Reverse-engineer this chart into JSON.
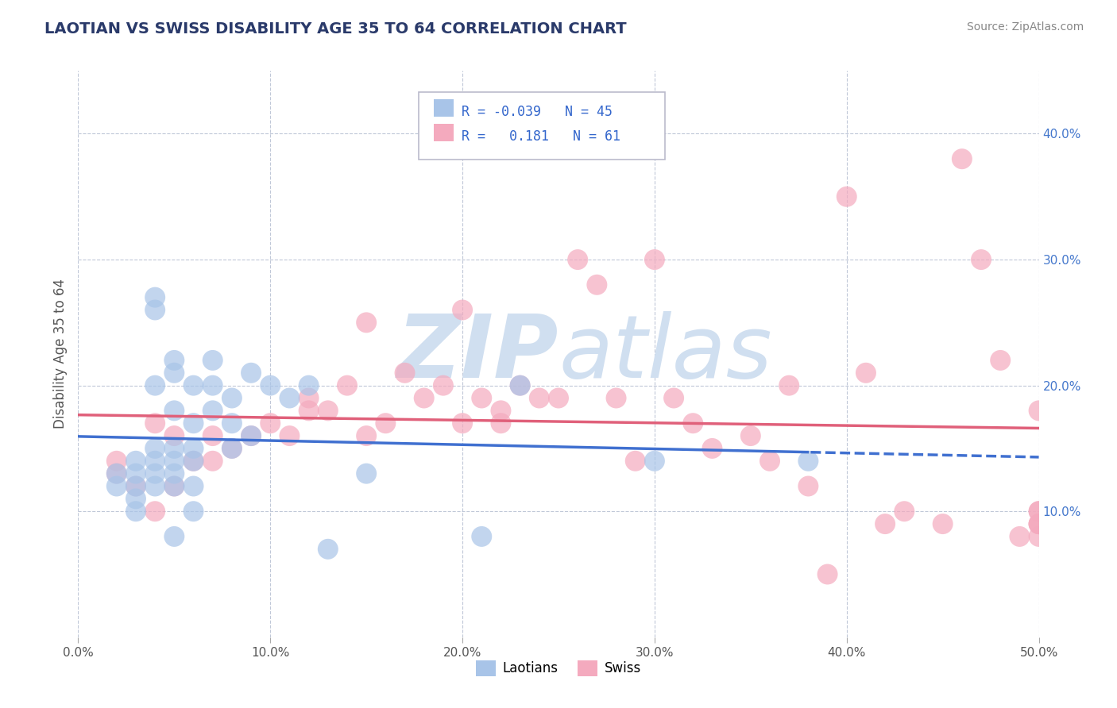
{
  "title": "LAOTIAN VS SWISS DISABILITY AGE 35 TO 64 CORRELATION CHART",
  "source_text": "Source: ZipAtlas.com",
  "ylabel": "Disability Age 35 to 64",
  "xlim": [
    0.0,
    0.5
  ],
  "ylim": [
    0.0,
    0.45
  ],
  "xticks": [
    0.0,
    0.1,
    0.2,
    0.3,
    0.4,
    0.5
  ],
  "xtick_labels": [
    "0.0%",
    "10.0%",
    "20.0%",
    "30.0%",
    "40.0%",
    "50.0%"
  ],
  "yticks": [
    0.1,
    0.2,
    0.3,
    0.4
  ],
  "ytick_labels": [
    "10.0%",
    "20.0%",
    "30.0%",
    "40.0%"
  ],
  "legend_r_laotian": "-0.039",
  "legend_n_laotian": "45",
  "legend_r_swiss": "0.181",
  "legend_n_swiss": "61",
  "laotian_color": "#a8c4e8",
  "swiss_color": "#f4aabe",
  "laotian_line_color": "#4070d0",
  "swiss_line_color": "#e0607a",
  "background_color": "#ffffff",
  "watermark_color": "#d0dff0",
  "laotian_x": [
    0.02,
    0.02,
    0.03,
    0.03,
    0.03,
    0.03,
    0.03,
    0.04,
    0.04,
    0.04,
    0.04,
    0.04,
    0.04,
    0.04,
    0.05,
    0.05,
    0.05,
    0.05,
    0.05,
    0.05,
    0.05,
    0.05,
    0.06,
    0.06,
    0.06,
    0.06,
    0.06,
    0.06,
    0.07,
    0.07,
    0.07,
    0.08,
    0.08,
    0.08,
    0.09,
    0.09,
    0.1,
    0.11,
    0.12,
    0.13,
    0.15,
    0.21,
    0.23,
    0.3,
    0.38
  ],
  "laotian_y": [
    0.13,
    0.12,
    0.14,
    0.13,
    0.12,
    0.11,
    0.1,
    0.27,
    0.26,
    0.2,
    0.15,
    0.14,
    0.13,
    0.12,
    0.22,
    0.21,
    0.18,
    0.15,
    0.14,
    0.13,
    0.12,
    0.08,
    0.2,
    0.17,
    0.15,
    0.14,
    0.12,
    0.1,
    0.22,
    0.2,
    0.18,
    0.19,
    0.17,
    0.15,
    0.21,
    0.16,
    0.2,
    0.19,
    0.2,
    0.07,
    0.13,
    0.08,
    0.2,
    0.14,
    0.14
  ],
  "swiss_x": [
    0.02,
    0.02,
    0.03,
    0.04,
    0.04,
    0.05,
    0.05,
    0.06,
    0.07,
    0.07,
    0.08,
    0.09,
    0.1,
    0.11,
    0.12,
    0.12,
    0.13,
    0.14,
    0.15,
    0.15,
    0.16,
    0.17,
    0.18,
    0.19,
    0.2,
    0.2,
    0.21,
    0.22,
    0.22,
    0.23,
    0.24,
    0.25,
    0.26,
    0.27,
    0.28,
    0.29,
    0.3,
    0.31,
    0.32,
    0.33,
    0.35,
    0.36,
    0.37,
    0.38,
    0.39,
    0.4,
    0.41,
    0.42,
    0.43,
    0.45,
    0.46,
    0.47,
    0.48,
    0.49,
    0.5,
    0.5,
    0.5,
    0.5,
    0.5,
    0.5,
    0.5
  ],
  "swiss_y": [
    0.14,
    0.13,
    0.12,
    0.17,
    0.1,
    0.16,
    0.12,
    0.14,
    0.16,
    0.14,
    0.15,
    0.16,
    0.17,
    0.16,
    0.19,
    0.18,
    0.18,
    0.2,
    0.16,
    0.25,
    0.17,
    0.21,
    0.19,
    0.2,
    0.26,
    0.17,
    0.19,
    0.18,
    0.17,
    0.2,
    0.19,
    0.19,
    0.3,
    0.28,
    0.19,
    0.14,
    0.3,
    0.19,
    0.17,
    0.15,
    0.16,
    0.14,
    0.2,
    0.12,
    0.05,
    0.35,
    0.21,
    0.09,
    0.1,
    0.09,
    0.38,
    0.3,
    0.22,
    0.08,
    0.1,
    0.09,
    0.08,
    0.18,
    0.09,
    0.09,
    0.1
  ]
}
